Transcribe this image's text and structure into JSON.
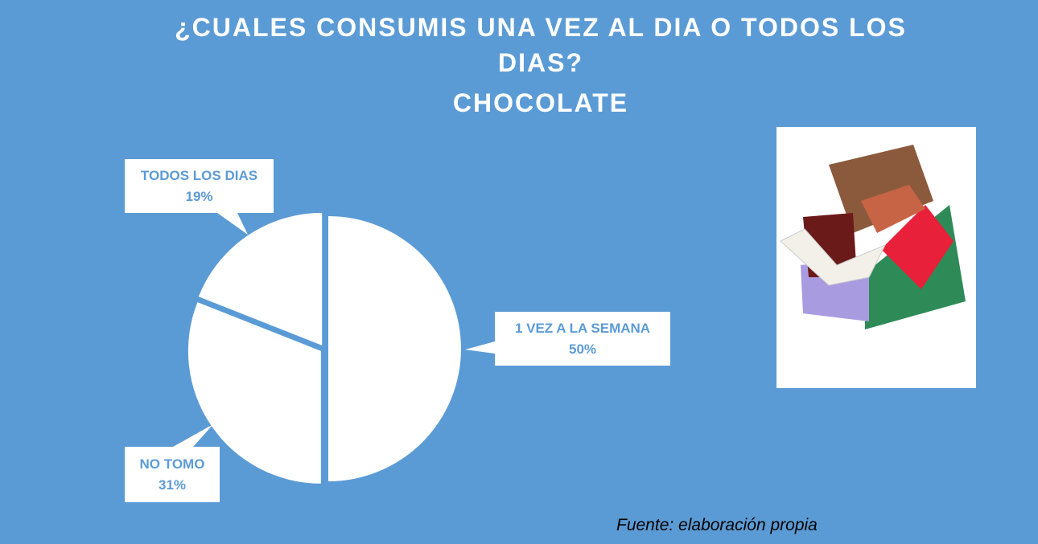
{
  "chart_data": {
    "type": "pie",
    "title": "¿CUALES CONSUMIS UNA VEZ AL DIA O TODOS LOS DIAS?",
    "subtitle": "CHOCOLATE",
    "categories": [
      "1 VEZ A LA SEMANA",
      "NO TOMO",
      "TODOS LOS DIAS"
    ],
    "values": [
      50,
      31,
      19
    ],
    "value_labels": [
      "50%",
      "31%",
      "19%"
    ],
    "color": "#ffffff",
    "source": "Fuente: elaboración propia"
  }
}
